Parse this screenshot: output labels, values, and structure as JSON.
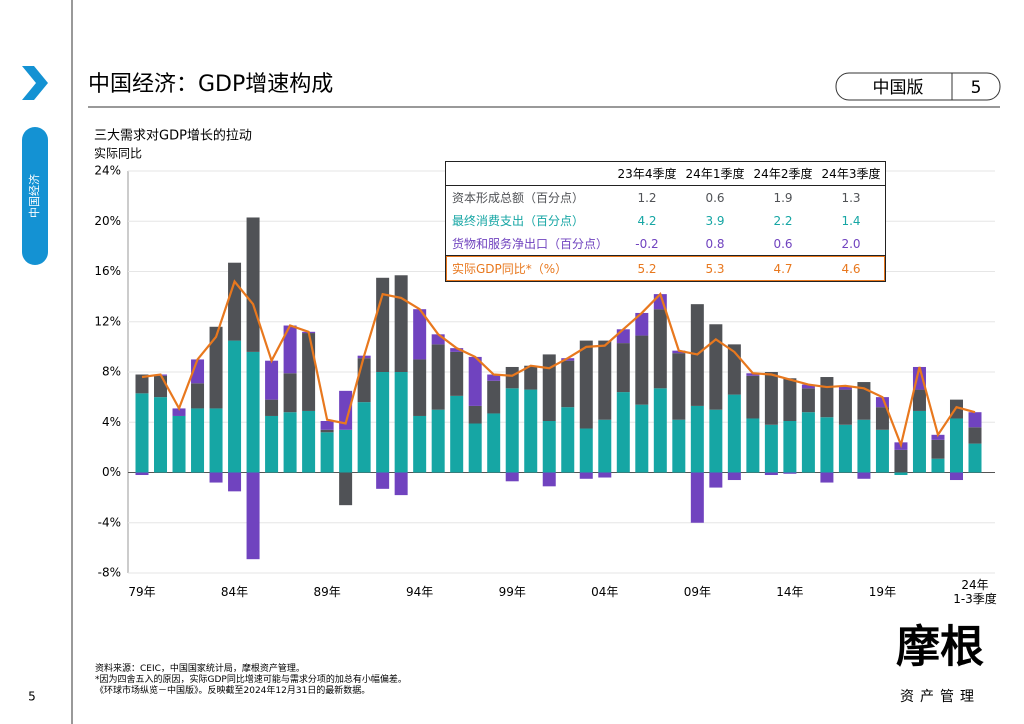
{
  "header": {
    "title": "中国经济：GDP增速构成",
    "edition": "中国版",
    "page": "5"
  },
  "sidebar": {
    "section": "中国经济"
  },
  "chart_data": {
    "type": "bar",
    "stacked": true,
    "title": "三大需求对GDP增长的拉动",
    "ylabel": "实际同比",
    "categories": [
      "79年",
      null,
      null,
      null,
      null,
      "84年",
      null,
      null,
      null,
      null,
      "89年",
      null,
      null,
      null,
      null,
      "94年",
      null,
      null,
      null,
      null,
      "99年",
      null,
      null,
      null,
      null,
      "04年",
      null,
      null,
      null,
      null,
      "09年",
      null,
      null,
      null,
      null,
      "14年",
      null,
      null,
      null,
      null,
      "19年",
      null,
      null,
      null,
      null,
      "24年\n1-3季度"
    ],
    "ylim": [
      -8,
      24
    ],
    "yticks": [
      {
        "value": -8,
        "label": "-8%"
      },
      {
        "value": -4,
        "label": "-4%"
      },
      {
        "value": 0,
        "label": "0%"
      },
      {
        "value": 4,
        "label": "4%"
      },
      {
        "value": 8,
        "label": "8%"
      },
      {
        "value": 12,
        "label": "12%"
      },
      {
        "value": 16,
        "label": "16%"
      },
      {
        "value": 20,
        "label": "20%"
      },
      {
        "value": 24,
        "label": "24%"
      }
    ],
    "grid": true,
    "series": [
      {
        "name": "最终消费支出（百分点）",
        "color": "#16a6a4",
        "values": [
          6.3,
          6.0,
          4.5,
          5.1,
          5.1,
          10.5,
          9.6,
          4.5,
          4.8,
          4.9,
          3.2,
          3.4,
          5.6,
          8.0,
          8.0,
          4.5,
          5.0,
          6.1,
          3.9,
          4.7,
          6.7,
          6.6,
          4.1,
          5.2,
          3.5,
          4.2,
          6.4,
          5.4,
          6.7,
          4.2,
          5.3,
          5.0,
          6.2,
          4.3,
          3.8,
          4.1,
          4.8,
          4.4,
          3.8,
          4.2,
          3.4,
          -0.2,
          4.9,
          1.1,
          4.3,
          2.3
        ]
      },
      {
        "name": "资本形成总额（百分点）",
        "color": "#505256",
        "values": [
          1.5,
          1.7,
          0,
          2.0,
          6.5,
          6.2,
          10.7,
          1.3,
          3.1,
          6.2,
          0.2,
          -2.6,
          3.5,
          7.5,
          7.7,
          4.5,
          5.2,
          3.5,
          1.4,
          2.6,
          1.7,
          1.9,
          5.3,
          3.7,
          7.0,
          6.3,
          3.9,
          5.5,
          6.3,
          5.3,
          8.1,
          6.8,
          4.0,
          3.4,
          4.2,
          3.4,
          1.9,
          3.2,
          2.8,
          3.0,
          1.8,
          1.8,
          1.7,
          1.5,
          1.5,
          1.3
        ]
      },
      {
        "name": "货物和服务净出口（百分点）",
        "color": "#7043bf",
        "values": [
          -0.2,
          0.1,
          0.6,
          1.9,
          -0.8,
          -1.5,
          -6.9,
          3.1,
          3.8,
          0.1,
          0.7,
          3.1,
          0.2,
          -1.3,
          -1.8,
          4.0,
          0.8,
          0.3,
          3.9,
          0.5,
          -0.7,
          0,
          -1.1,
          0.2,
          -0.5,
          -0.4,
          1.1,
          1.8,
          1.2,
          0.2,
          -4.0,
          -1.2,
          -0.6,
          0.2,
          -0.2,
          -0.1,
          0.3,
          -0.8,
          0.3,
          -0.5,
          0.8,
          0.6,
          1.8,
          0.4,
          -0.6,
          1.2
        ]
      },
      {
        "name": "实际GDP同比*（%）",
        "type": "line",
        "color": "#e8781e",
        "values": [
          7.6,
          7.8,
          5.1,
          9.0,
          10.8,
          15.2,
          13.4,
          8.9,
          11.7,
          11.2,
          4.2,
          3.9,
          9.3,
          14.2,
          13.9,
          13.0,
          11.0,
          9.9,
          9.2,
          7.8,
          7.7,
          8.5,
          8.3,
          9.1,
          10.0,
          10.1,
          11.4,
          12.7,
          14.2,
          9.7,
          9.4,
          10.6,
          9.6,
          7.9,
          7.8,
          7.4,
          7.0,
          6.8,
          6.9,
          6.7,
          6.0,
          2.2,
          8.4,
          3.0,
          5.2,
          4.8
        ]
      }
    ]
  },
  "table": {
    "columns": [
      "23年4季度",
      "24年1季度",
      "24年2季度",
      "24年3季度"
    ],
    "rows": [
      {
        "series": 1,
        "values": [
          "1.2",
          "0.6",
          "1.9",
          "1.3"
        ]
      },
      {
        "series": 0,
        "values": [
          "4.2",
          "3.9",
          "2.2",
          "1.4"
        ]
      },
      {
        "series": 2,
        "values": [
          "-0.2",
          "0.8",
          "0.6",
          "2.0"
        ]
      },
      {
        "series": 3,
        "values": [
          "5.2",
          "5.3",
          "4.7",
          "4.6"
        ]
      }
    ]
  },
  "footer": {
    "notes": [
      "资料来源：CEIC，中国国家统计局，摩根资产管理。",
      "*因为四舍五入的原因，实际GDP同比增速可能与需求分项的加总有小幅偏差。",
      "《环球市场纵览－中国版》。反映截至2024年12月31日的最新数据。"
    ],
    "page": "5"
  },
  "logo": {
    "name": "摩根",
    "subtitle": "资产管理"
  }
}
